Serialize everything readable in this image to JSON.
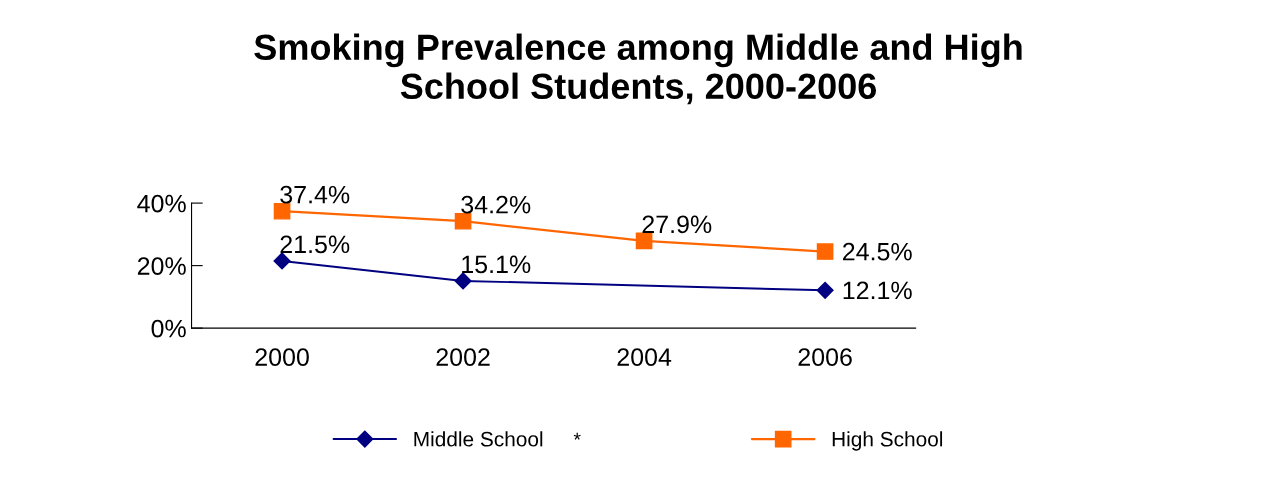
{
  "chart_data": {
    "type": "line",
    "title": "Smoking Prevalence among Middle and High\nSchool Students, 2000-2006",
    "categories": [
      "2000",
      "2002",
      "2004",
      "2006"
    ],
    "series": [
      {
        "name": "Middle School",
        "color": "#000080",
        "marker": "diamond",
        "values": [
          21.5,
          15.1,
          null,
          12.1
        ],
        "value_labels": [
          "21.5%",
          "15.1%",
          null,
          "12.1%"
        ]
      },
      {
        "name": "High School",
        "color": "#ff6600",
        "marker": "square",
        "values": [
          37.4,
          34.2,
          27.9,
          24.5
        ],
        "value_labels": [
          "37.4%",
          "34.2%",
          "27.9%",
          "24.5%"
        ]
      }
    ],
    "ylim": [
      0,
      40
    ],
    "yticks": [
      {
        "value": 0,
        "label": "0%"
      },
      {
        "value": 20,
        "label": "20%"
      },
      {
        "value": 40,
        "label": "40%"
      }
    ],
    "grid": false,
    "legend": "bottom",
    "annotations": [
      "*"
    ]
  }
}
